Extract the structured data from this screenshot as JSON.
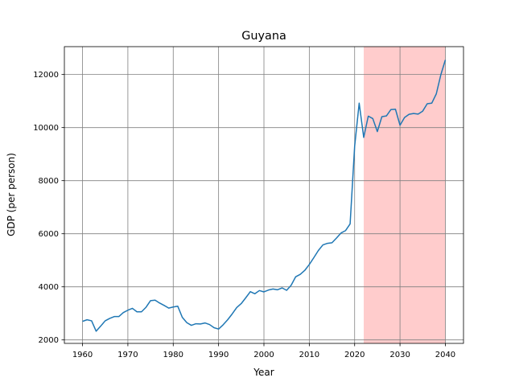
{
  "chart_data": {
    "type": "line",
    "title": "Guyana",
    "xlabel": "Year",
    "ylabel": "GDP (per person)",
    "xlim": [
      1956.0,
      2044.0
    ],
    "ylim": [
      1870,
      13050
    ],
    "xticks": [
      1960,
      1970,
      1980,
      1990,
      2000,
      2010,
      2020,
      2030,
      2040
    ],
    "yticks": [
      2000,
      4000,
      6000,
      8000,
      10000,
      12000
    ],
    "xtick_labels": [
      "1960",
      "1970",
      "1980",
      "1990",
      "2000",
      "2010",
      "2020",
      "2030",
      "2040"
    ],
    "ytick_labels": [
      "2000",
      "4000",
      "6000",
      "8000",
      "10000",
      "12000"
    ],
    "grid": true,
    "shaded_region": {
      "x_start": 2022,
      "x_end": 2040,
      "color": "#ffcccc"
    },
    "series": [
      {
        "color": "#1f77b4",
        "x": [
          1960,
          1961,
          1962,
          1963,
          1964,
          1965,
          1966,
          1967,
          1968,
          1969,
          1970,
          1971,
          1972,
          1973,
          1974,
          1975,
          1976,
          1977,
          1978,
          1979,
          1980,
          1981,
          1982,
          1983,
          1984,
          1985,
          1986,
          1987,
          1988,
          1989,
          1990,
          1991,
          1992,
          1993,
          1994,
          1995,
          1996,
          1997,
          1998,
          1999,
          2000,
          2001,
          2002,
          2003,
          2004,
          2005,
          2006,
          2007,
          2008,
          2009,
          2010,
          2011,
          2012,
          2013,
          2014,
          2015,
          2016,
          2017,
          2018,
          2019,
          2020,
          2021,
          2022,
          2023,
          2024,
          2025,
          2026,
          2027,
          2028,
          2029,
          2030,
          2031,
          2032,
          2033,
          2034,
          2035,
          2036,
          2037,
          2038,
          2039,
          2040
        ],
        "y": [
          2700,
          2760,
          2720,
          2330,
          2520,
          2720,
          2810,
          2880,
          2880,
          3030,
          3120,
          3190,
          3060,
          3060,
          3230,
          3480,
          3500,
          3390,
          3300,
          3200,
          3240,
          3270,
          2850,
          2650,
          2550,
          2610,
          2600,
          2640,
          2580,
          2460,
          2410,
          2570,
          2760,
          2980,
          3220,
          3370,
          3590,
          3820,
          3740,
          3860,
          3810,
          3880,
          3920,
          3890,
          3960,
          3870,
          4060,
          4380,
          4470,
          4620,
          4840,
          5100,
          5370,
          5580,
          5640,
          5660,
          5840,
          6030,
          6120,
          6370,
          9300,
          10920,
          9630,
          10430,
          10340,
          9850,
          10410,
          10440,
          10680,
          10690,
          10090,
          10380,
          10500,
          10530,
          10510,
          10620,
          10900,
          10920,
          11270,
          11990,
          12550
        ]
      }
    ]
  }
}
